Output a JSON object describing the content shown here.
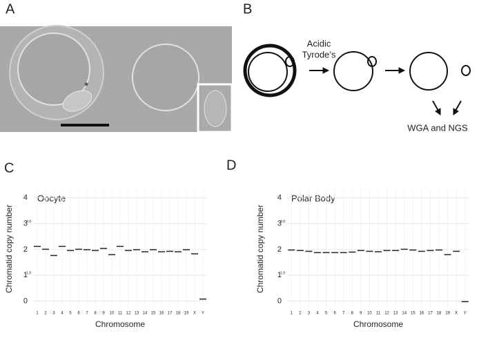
{
  "panels": {
    "a": {
      "label": "A"
    },
    "b": {
      "label": "B",
      "step_label": [
        "Acidic",
        "Tyrode’s"
      ],
      "result_label": "WGA and NGS"
    },
    "c": {
      "label": "C"
    },
    "d": {
      "label": "D"
    }
  },
  "chart_data": [
    {
      "type": "segment",
      "title": "Oocyte",
      "x_label": "Chromosome",
      "y_label": "Chromatid copy number",
      "categories": [
        "1",
        "2",
        "3",
        "4",
        "5",
        "6",
        "7",
        "8",
        "9",
        "10",
        "11",
        "12",
        "13",
        "14",
        "15",
        "16",
        "17",
        "18",
        "19",
        "X",
        "Y"
      ],
      "values": [
        2.12,
        2.01,
        1.77,
        2.12,
        1.96,
        2.01,
        1.99,
        1.96,
        2.04,
        1.8,
        2.12,
        1.96,
        1.99,
        1.91,
        1.99,
        1.91,
        1.93,
        1.91,
        1.99,
        1.83,
        0.08
      ],
      "color": "#222222",
      "ylim": [
        -0.25,
        4.3
      ],
      "yticks": [
        0,
        1,
        2,
        3,
        4
      ],
      "ref_lines": [
        {
          "value": 3,
          "label": "3.0"
        },
        {
          "value": 1,
          "label": "1.0"
        }
      ],
      "grid": true
    },
    {
      "type": "segment",
      "title": "Polar Body",
      "x_label": "Chromosome",
      "y_label": "Chromatid copy number",
      "categories": [
        "1",
        "2",
        "3",
        "4",
        "5",
        "6",
        "7",
        "8",
        "9",
        "10",
        "11",
        "12",
        "13",
        "14",
        "15",
        "16",
        "17",
        "18",
        "19",
        "X",
        "Y"
      ],
      "values": [
        1.98,
        1.96,
        1.93,
        1.88,
        1.88,
        1.88,
        1.88,
        1.9,
        1.96,
        1.93,
        1.91,
        1.96,
        1.96,
        2.01,
        1.98,
        1.93,
        1.96,
        1.98,
        1.8,
        1.93,
        -0.02
      ],
      "color": "#222222",
      "ylim": [
        -0.25,
        4.3
      ],
      "yticks": [
        0,
        1,
        2,
        3,
        4
      ],
      "ref_lines": [
        {
          "value": 3,
          "label": "3.0"
        },
        {
          "value": 1,
          "label": "1.0"
        }
      ],
      "grid": true
    }
  ]
}
